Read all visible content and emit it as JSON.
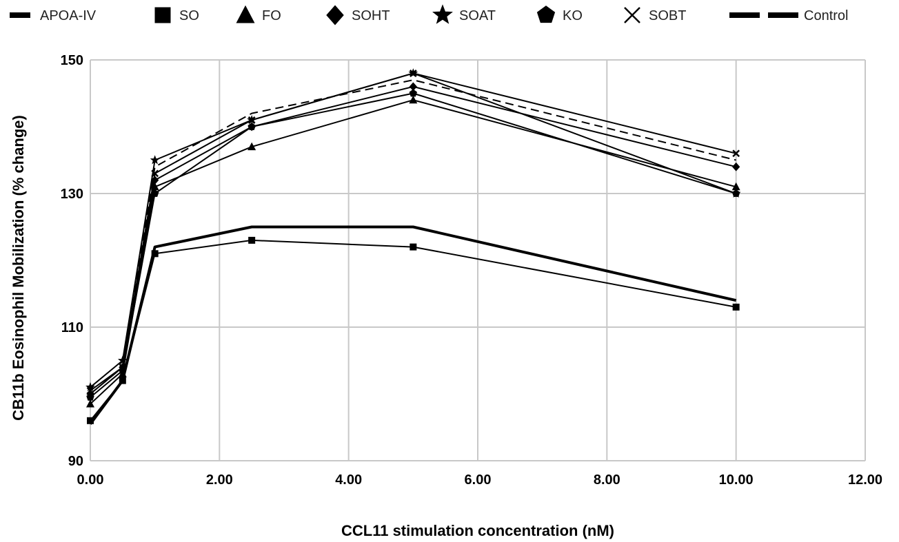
{
  "chart_data": {
    "type": "line",
    "title": "",
    "xlabel": "CCL11 stimulation concentration (nM)",
    "ylabel": "CB11b Eosinophil Mobilization (% change)",
    "xlim": [
      0,
      12
    ],
    "ylim": [
      90,
      150
    ],
    "x_ticks": [
      0,
      2,
      4,
      6,
      8,
      10,
      12
    ],
    "x_tick_labels": [
      "0.00",
      "2.00",
      "4.00",
      "6.00",
      "8.00",
      "10.00",
      "12.00"
    ],
    "y_ticks": [
      90,
      110,
      130,
      150
    ],
    "y_tick_labels": [
      "90",
      "110",
      "130",
      "150"
    ],
    "grid": true,
    "legend_position": "top",
    "x": [
      0,
      0.5,
      1,
      2.5,
      5,
      10
    ],
    "series": [
      {
        "name": "APOA-IV",
        "marker": "dash",
        "line": "thick",
        "values": [
          95.5,
          102,
          122,
          125,
          125,
          114
        ]
      },
      {
        "name": "SO",
        "marker": "square",
        "line": "solid",
        "values": [
          96,
          102,
          121,
          123,
          122,
          113
        ]
      },
      {
        "name": "FO",
        "marker": "triangle",
        "line": "solid",
        "values": [
          98.5,
          103,
          131,
          137,
          144,
          131
        ]
      },
      {
        "name": "SOHT",
        "marker": "diamond",
        "line": "solid",
        "values": [
          100,
          104,
          132,
          140,
          146,
          134
        ]
      },
      {
        "name": "SOAT",
        "marker": "star",
        "line": "solid",
        "values": [
          101,
          105,
          135,
          141,
          148,
          130
        ]
      },
      {
        "name": "KO",
        "marker": "pentagon",
        "line": "solid",
        "values": [
          99.5,
          103.5,
          130,
          140,
          145,
          130
        ]
      },
      {
        "name": "SOBT",
        "marker": "x",
        "line": "solid",
        "values": [
          100.5,
          104,
          133,
          141,
          148,
          136
        ]
      },
      {
        "name": "Control",
        "marker": "none",
        "line": "dashed",
        "values": [
          100,
          104,
          134,
          142,
          147,
          135
        ]
      }
    ]
  }
}
